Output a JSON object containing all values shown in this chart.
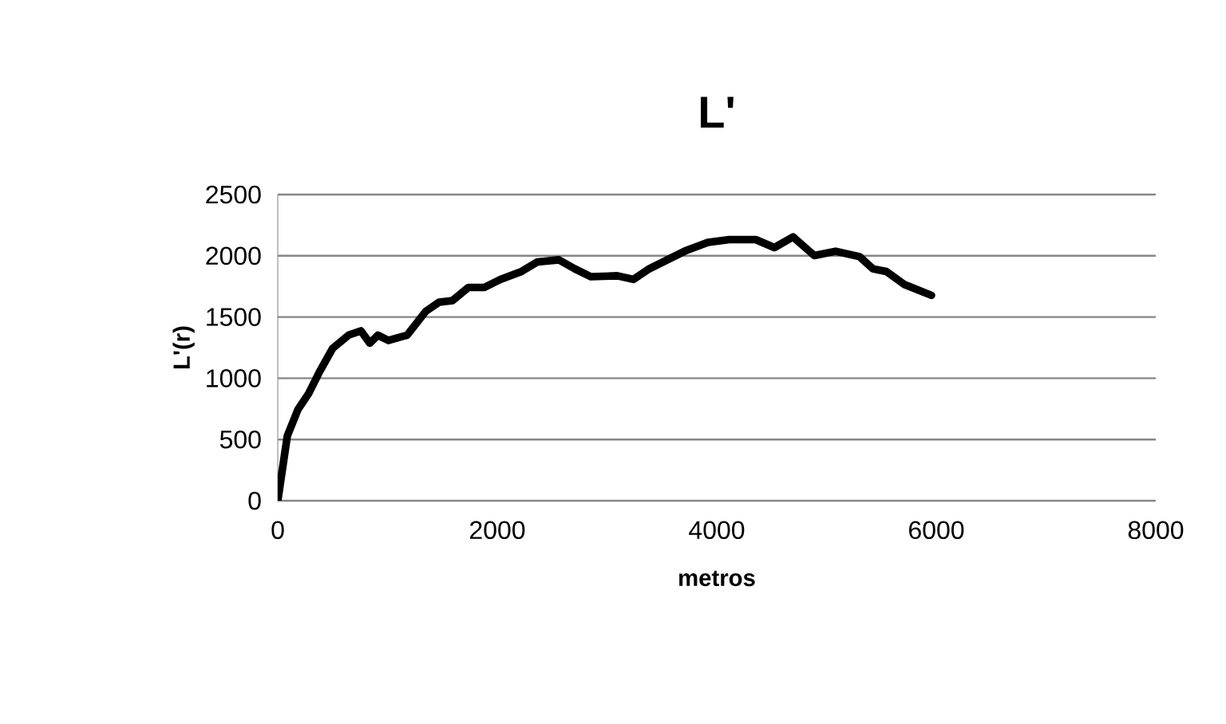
{
  "chart_data": {
    "type": "line",
    "title": "L'",
    "xlabel": "metros",
    "ylabel": "L'(r)",
    "x": [
      0,
      87,
      184,
      281,
      378,
      500,
      645,
      757,
      839,
      912,
      1009,
      1179,
      1349,
      1470,
      1591,
      1737,
      1882,
      2028,
      2221,
      2367,
      2561,
      2706,
      2852,
      3094,
      3240,
      3385,
      3531,
      3725,
      3919,
      4113,
      4355,
      4525,
      4695,
      4889,
      5083,
      5301,
      5422,
      5544,
      5713,
      5956
    ],
    "series": [
      {
        "color": "#000000",
        "values": [
          0,
          529,
          745,
          875,
          1049,
          1244,
          1352,
          1387,
          1287,
          1352,
          1309,
          1352,
          1547,
          1621,
          1634,
          1742,
          1742,
          1807,
          1872,
          1950,
          1967,
          1894,
          1829,
          1837,
          1807,
          1894,
          1959,
          2045,
          2110,
          2132,
          2132,
          2067,
          2154,
          2002,
          2037,
          1993,
          1894,
          1872,
          1764,
          1677
        ]
      }
    ],
    "xlim": [
      0,
      8000
    ],
    "ylim": [
      0,
      2500
    ],
    "xticks": [
      0,
      2000,
      4000,
      6000,
      8000
    ],
    "yticks": [
      0,
      500,
      1000,
      1500,
      2000,
      2500
    ],
    "grid": "y",
    "legend": false,
    "marker": "none",
    "line_style": "solid"
  }
}
